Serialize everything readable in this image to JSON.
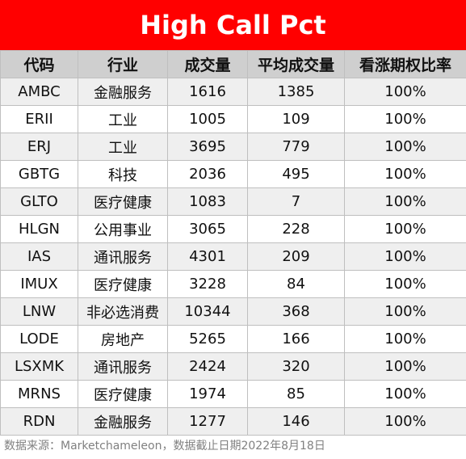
{
  "title": "High Call Pct",
  "columns": [
    "代码",
    "行业",
    "成交量",
    "平均成交量",
    "看涨期权比率"
  ],
  "rows": [
    [
      "AMBC",
      "金融服务",
      "1616",
      "1385",
      "100%"
    ],
    [
      "ERII",
      "工业",
      "1005",
      "109",
      "100%"
    ],
    [
      "ERJ",
      "工业",
      "3695",
      "779",
      "100%"
    ],
    [
      "GBTG",
      "科技",
      "2036",
      "495",
      "100%"
    ],
    [
      "GLTO",
      "医疗健康",
      "1083",
      "7",
      "100%"
    ],
    [
      "HLGN",
      "公用事业",
      "3065",
      "228",
      "100%"
    ],
    [
      "IAS",
      "通讯服务",
      "4301",
      "209",
      "100%"
    ],
    [
      "IMUX",
      "医疗健康",
      "3228",
      "84",
      "100%"
    ],
    [
      "LNW",
      "非必选消费",
      "10344",
      "368",
      "100%"
    ],
    [
      "LODE",
      "房地产",
      "5265",
      "166",
      "100%"
    ],
    [
      "LSXMK",
      "通讯服务",
      "2424",
      "320",
      "100%"
    ],
    [
      "MRNS",
      "医疗健康",
      "1974",
      "85",
      "100%"
    ],
    [
      "RDN",
      "金融服务",
      "1277",
      "146",
      "100%"
    ]
  ],
  "footer": "数据来源：Marketchameleon，数据截止日期2022年8月18日",
  "colors": {
    "banner": "#ff0000",
    "header_bg": "#cfcfcf",
    "row_alt": "#efefef"
  }
}
